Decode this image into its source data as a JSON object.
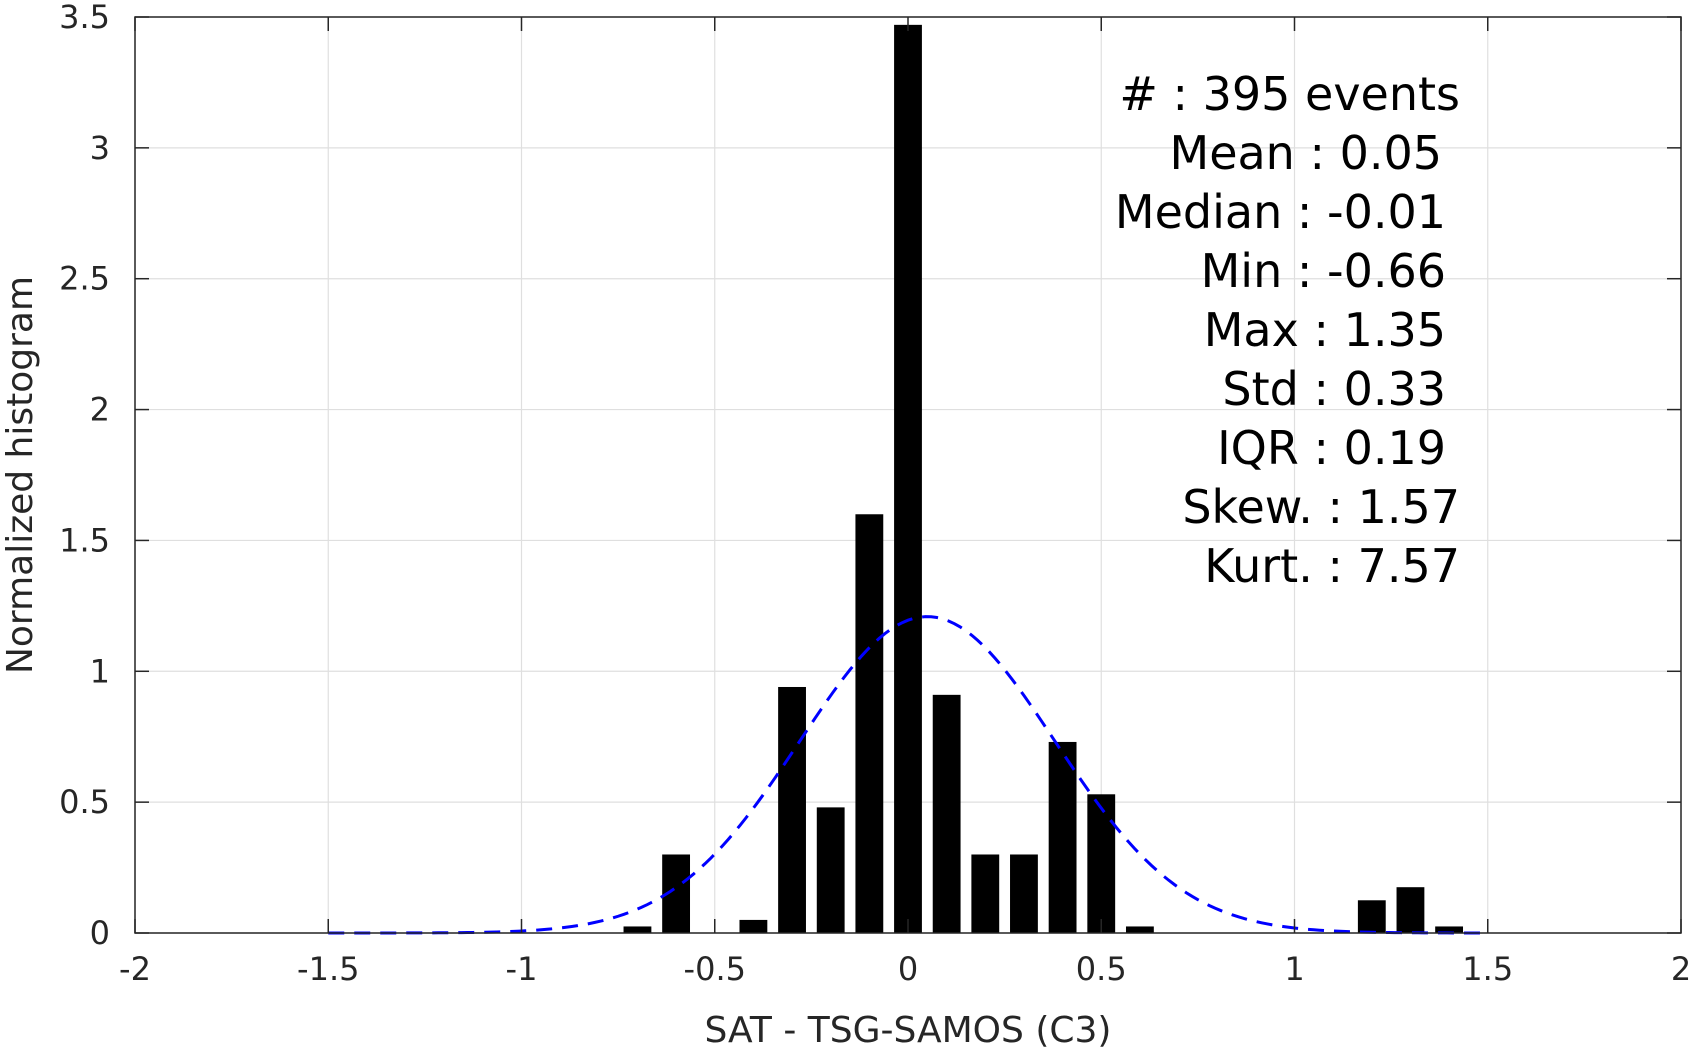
{
  "chart_data": {
    "type": "bar",
    "xlabel": "SAT - TSG-SAMOS (C3)",
    "ylabel": "Normalized histogram",
    "xlim": [
      -2,
      2
    ],
    "ylim": [
      0,
      3.5
    ],
    "x_ticks": [
      -2,
      -1.5,
      -1,
      -0.5,
      0,
      0.5,
      1,
      1.5,
      2
    ],
    "x_tick_labels": [
      "-2",
      "-1.5",
      "-1",
      "-0.5",
      "0",
      "0.5",
      "1",
      "1.5",
      "2"
    ],
    "y_ticks": [
      0,
      0.5,
      1,
      1.5,
      2,
      2.5,
      3,
      3.5
    ],
    "y_tick_labels": [
      "0",
      "0.5",
      "1",
      "1.5",
      "2",
      "2.5",
      "3",
      "3.5"
    ],
    "grid": true,
    "bin_width": 0.1,
    "bars": [
      {
        "x": -0.7,
        "y": 0.025
      },
      {
        "x": -0.6,
        "y": 0.3
      },
      {
        "x": -0.4,
        "y": 0.05
      },
      {
        "x": -0.3,
        "y": 0.94
      },
      {
        "x": -0.2,
        "y": 0.48
      },
      {
        "x": -0.1,
        "y": 1.6
      },
      {
        "x": 0.0,
        "y": 3.47
      },
      {
        "x": 0.1,
        "y": 0.91
      },
      {
        "x": 0.2,
        "y": 0.3
      },
      {
        "x": 0.3,
        "y": 0.3
      },
      {
        "x": 0.4,
        "y": 0.73
      },
      {
        "x": 0.5,
        "y": 0.53
      },
      {
        "x": 0.6,
        "y": 0.025
      },
      {
        "x": 1.2,
        "y": 0.125
      },
      {
        "x": 1.3,
        "y": 0.175
      },
      {
        "x": 1.4,
        "y": 0.025
      }
    ],
    "bar_color": "#000000",
    "fit_curve": {
      "style": "dashed",
      "color": "#0000ff",
      "distribution": "normal",
      "mean": 0.05,
      "std": 0.33,
      "x_range": [
        -1.5,
        1.5
      ]
    },
    "stats": [
      "#  : 395 events",
      "Mean : 0.05",
      "Median : -0.01",
      "Min : -0.66",
      "Max : 1.35",
      "Std : 0.33",
      "IQR : 0.19",
      "Skew. : 1.57",
      "Kurt. : 7.57"
    ]
  }
}
